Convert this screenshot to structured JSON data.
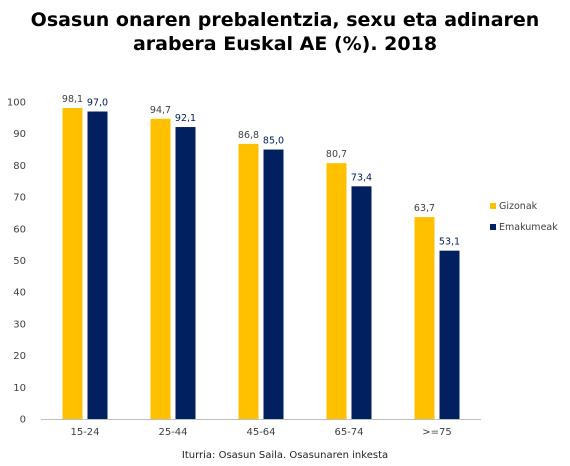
{
  "chart_data": {
    "type": "bar",
    "title_line1": "Osasun onaren prebalentzia, sexu eta adinaren",
    "title_line2": "arabera Euskal AE (%). 2018",
    "categories": [
      "15-24",
      "25-44",
      "45-64",
      "65-74",
      ">=75"
    ],
    "series": [
      {
        "name": "Gizonak",
        "color": "#FFC000",
        "values": [
          98.1,
          94.7,
          86.8,
          80.7,
          63.7
        ],
        "labels": [
          "98,1",
          "94,7",
          "86,8",
          "80,7",
          "63,7"
        ],
        "label_color": "#404040"
      },
      {
        "name": "Emakumeak",
        "color": "#002060",
        "values": [
          97.0,
          92.1,
          85.0,
          73.4,
          53.1
        ],
        "labels": [
          "97,0",
          "92,1",
          "85,0",
          "73,4",
          "53,1"
        ],
        "label_color": "#002060"
      }
    ],
    "yticks": [
      "0",
      "10",
      "20",
      "30",
      "40",
      "50",
      "60",
      "70",
      "80",
      "90",
      "100"
    ],
    "ylim": [
      0,
      100
    ],
    "grid": false,
    "legend_position": "right",
    "source": "Iturria: Osasun Saila. Osasunaren inkesta"
  }
}
